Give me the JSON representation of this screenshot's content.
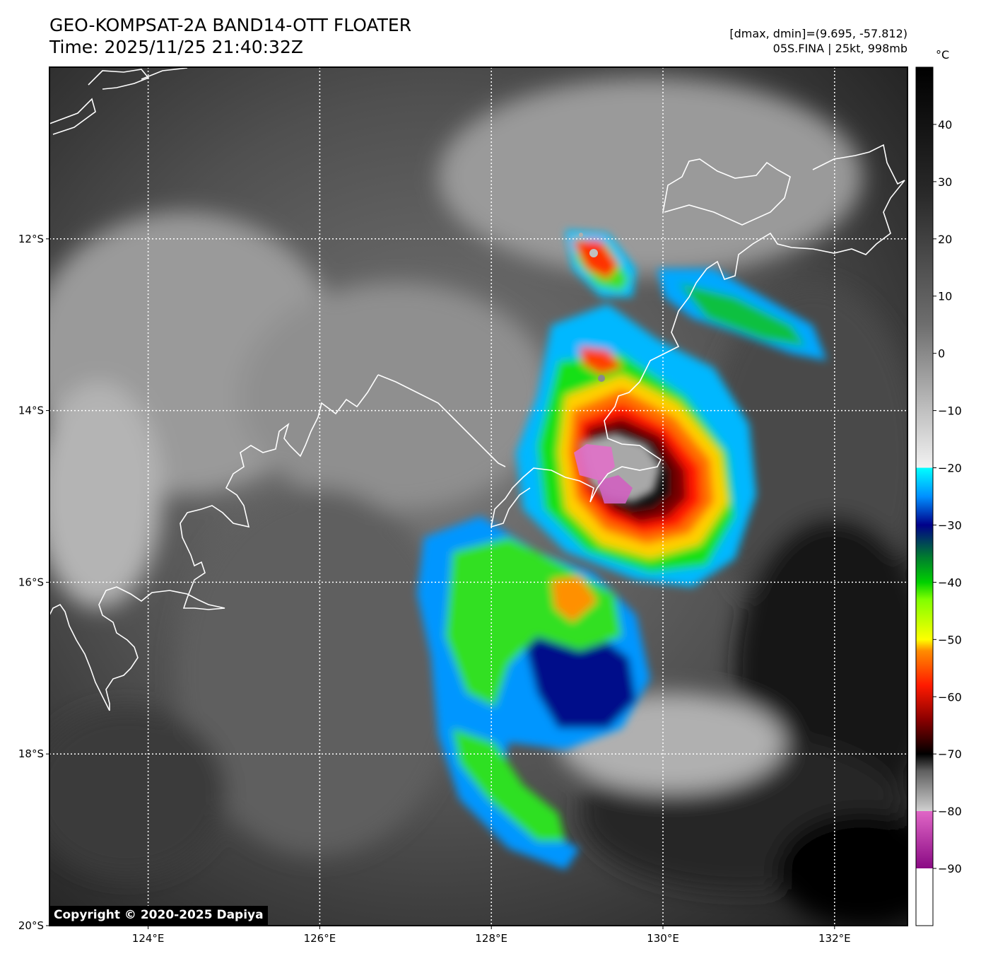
{
  "header": {
    "title_line1": "GEO-KOMPSAT-2A BAND14-OTT FLOATER",
    "title_line2": "Time: 2025/11/25 21:40:32Z",
    "info_line1": "[dmax, dmin]=(9.695, -57.812)",
    "info_line2": "05S.FINA | 25kt, 998mb"
  },
  "map": {
    "lon_range": [
      122.85,
      132.85
    ],
    "lat_range": [
      -20.0,
      -10.0
    ],
    "lon_ticks": [
      124,
      126,
      128,
      130,
      132
    ],
    "lat_ticks": [
      -12,
      -14,
      -16,
      -18,
      -20
    ],
    "lon_labels": [
      "124°E",
      "126°E",
      "128°E",
      "130°E",
      "132°E"
    ],
    "lat_labels": [
      "12°S",
      "14°S",
      "16°S",
      "18°S",
      "20°S"
    ],
    "coastline_color": "#ffffff",
    "grid": "dotted-white"
  },
  "colorbar": {
    "unit": "°C",
    "range": [
      -100,
      50
    ],
    "ticks": [
      40,
      30,
      20,
      10,
      0,
      -10,
      -20,
      -30,
      -40,
      -50,
      -60,
      -70,
      -80,
      -90
    ],
    "tick_labels": [
      "40",
      "30",
      "20",
      "10",
      "0",
      "−10",
      "−20",
      "−30",
      "−40",
      "−50",
      "−60",
      "−70",
      "−80",
      "−90"
    ]
  },
  "copyright": "Copyright © 2020-2025 Dapiya"
}
